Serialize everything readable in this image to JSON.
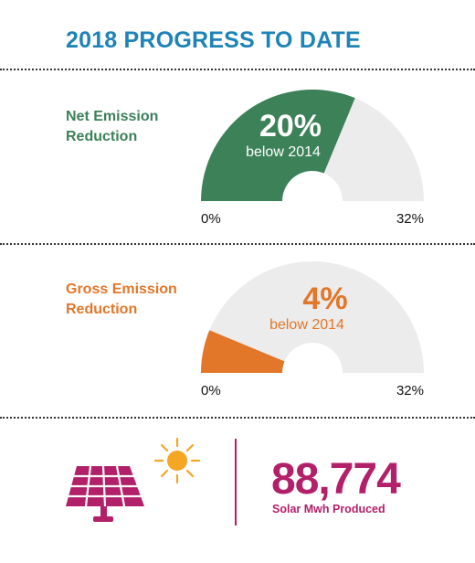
{
  "title": "2018 PROGRESS TO DATE",
  "colors": {
    "net": "#3d8159",
    "gross": "#e2772a",
    "track": "#ececec",
    "title": "#1e83b6",
    "solar": "#b3206a",
    "sun": "#f5a623"
  },
  "chart_data": [
    {
      "type": "gauge",
      "name_lines": [
        "Net Emission",
        "Reduction"
      ],
      "value": 20,
      "value_label": "20%",
      "sub_label": "below 2014",
      "min": 0,
      "max": 32,
      "min_label": "0%",
      "max_label": "32%"
    },
    {
      "type": "gauge",
      "name_lines": [
        "Gross Emission",
        "Reduction"
      ],
      "value": 4,
      "value_label": "4%",
      "sub_label": "below 2014",
      "min": 0,
      "max": 32,
      "min_label": "0%",
      "max_label": "32%"
    }
  ],
  "solar": {
    "value": "88,774",
    "label": "Solar Mwh Produced",
    "icons": [
      "sun-icon",
      "solar-panel-icon"
    ]
  }
}
